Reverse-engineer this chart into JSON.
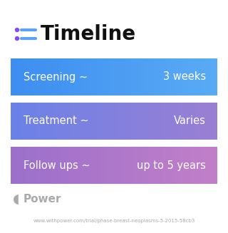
{
  "title": "Timeline",
  "title_fontsize": 20,
  "title_fontweight": "bold",
  "title_color": "#111111",
  "icon_color_dot": "#7c4dff",
  "icon_color_line": "#5c9fff",
  "bg_color": "#ffffff",
  "rows": [
    {
      "label": "Screening ~",
      "value": "3 weeks",
      "color_left": "#3d8ef0",
      "color_right": "#5aabf5"
    },
    {
      "label": "Treatment ~",
      "value": "Varies",
      "color_left": "#6b82e8",
      "color_right": "#9b7fd4"
    },
    {
      "label": "Follow ups ~",
      "value": "up to 5 years",
      "color_left": "#9b70cc",
      "color_right": "#c27fc8"
    }
  ],
  "footer_text": "Power",
  "footer_url": "www.withpower.com/trial/phase-breast-neoplasms-5-2015-58cb3",
  "footer_color": "#aaaaaa",
  "text_fontsize": 10.5,
  "text_color": "#ffffff"
}
